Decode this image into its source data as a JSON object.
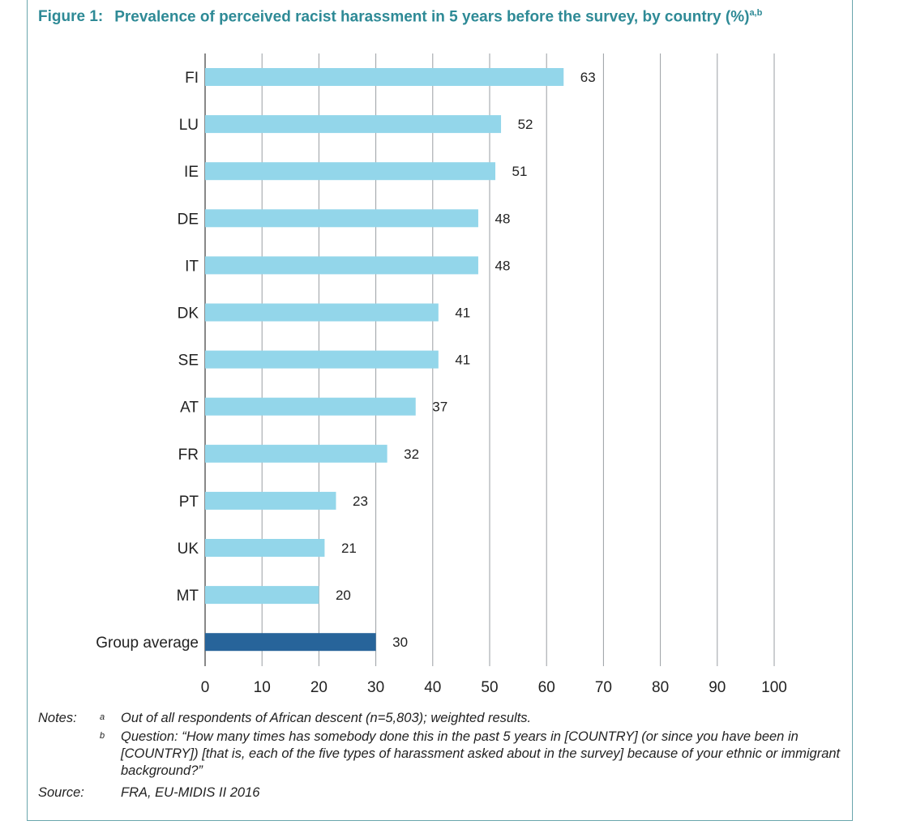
{
  "figure": {
    "label": "Figure 1:",
    "title": "Prevalence of perceived racist harassment in 5 years before the survey, by country (%)",
    "superscript": "a,b"
  },
  "chart_data": {
    "type": "bar",
    "orientation": "horizontal",
    "categories": [
      "FI",
      "LU",
      "IE",
      "DE",
      "IT",
      "DK",
      "SE",
      "AT",
      "FR",
      "PT",
      "UK",
      "MT",
      "Group average"
    ],
    "values": [
      63,
      52,
      51,
      48,
      48,
      41,
      41,
      37,
      32,
      23,
      21,
      20,
      30
    ],
    "xlim": [
      0,
      100
    ],
    "xticks": [
      0,
      10,
      20,
      30,
      40,
      50,
      60,
      70,
      80,
      90,
      100
    ],
    "grid": true,
    "colors": {
      "country": "#93d6ea",
      "average": "#27649a",
      "grid": "#9a9ea3"
    }
  },
  "notes": {
    "label": "Notes:",
    "items": [
      {
        "mark": "a",
        "text": "Out of all respondents of African descent (n=5,803); weighted results."
      },
      {
        "mark": "b",
        "text": "Question: “How many times has somebody done this in the past 5 years in [COUNTRY] (or since you have been in [COUNTRY]) [that is, each of the five types of harassment asked about in the survey] because of your ethnic or immigrant background?”"
      }
    ],
    "source_label": "Source:",
    "source_text": "FRA, EU-MIDIS II 2016"
  }
}
